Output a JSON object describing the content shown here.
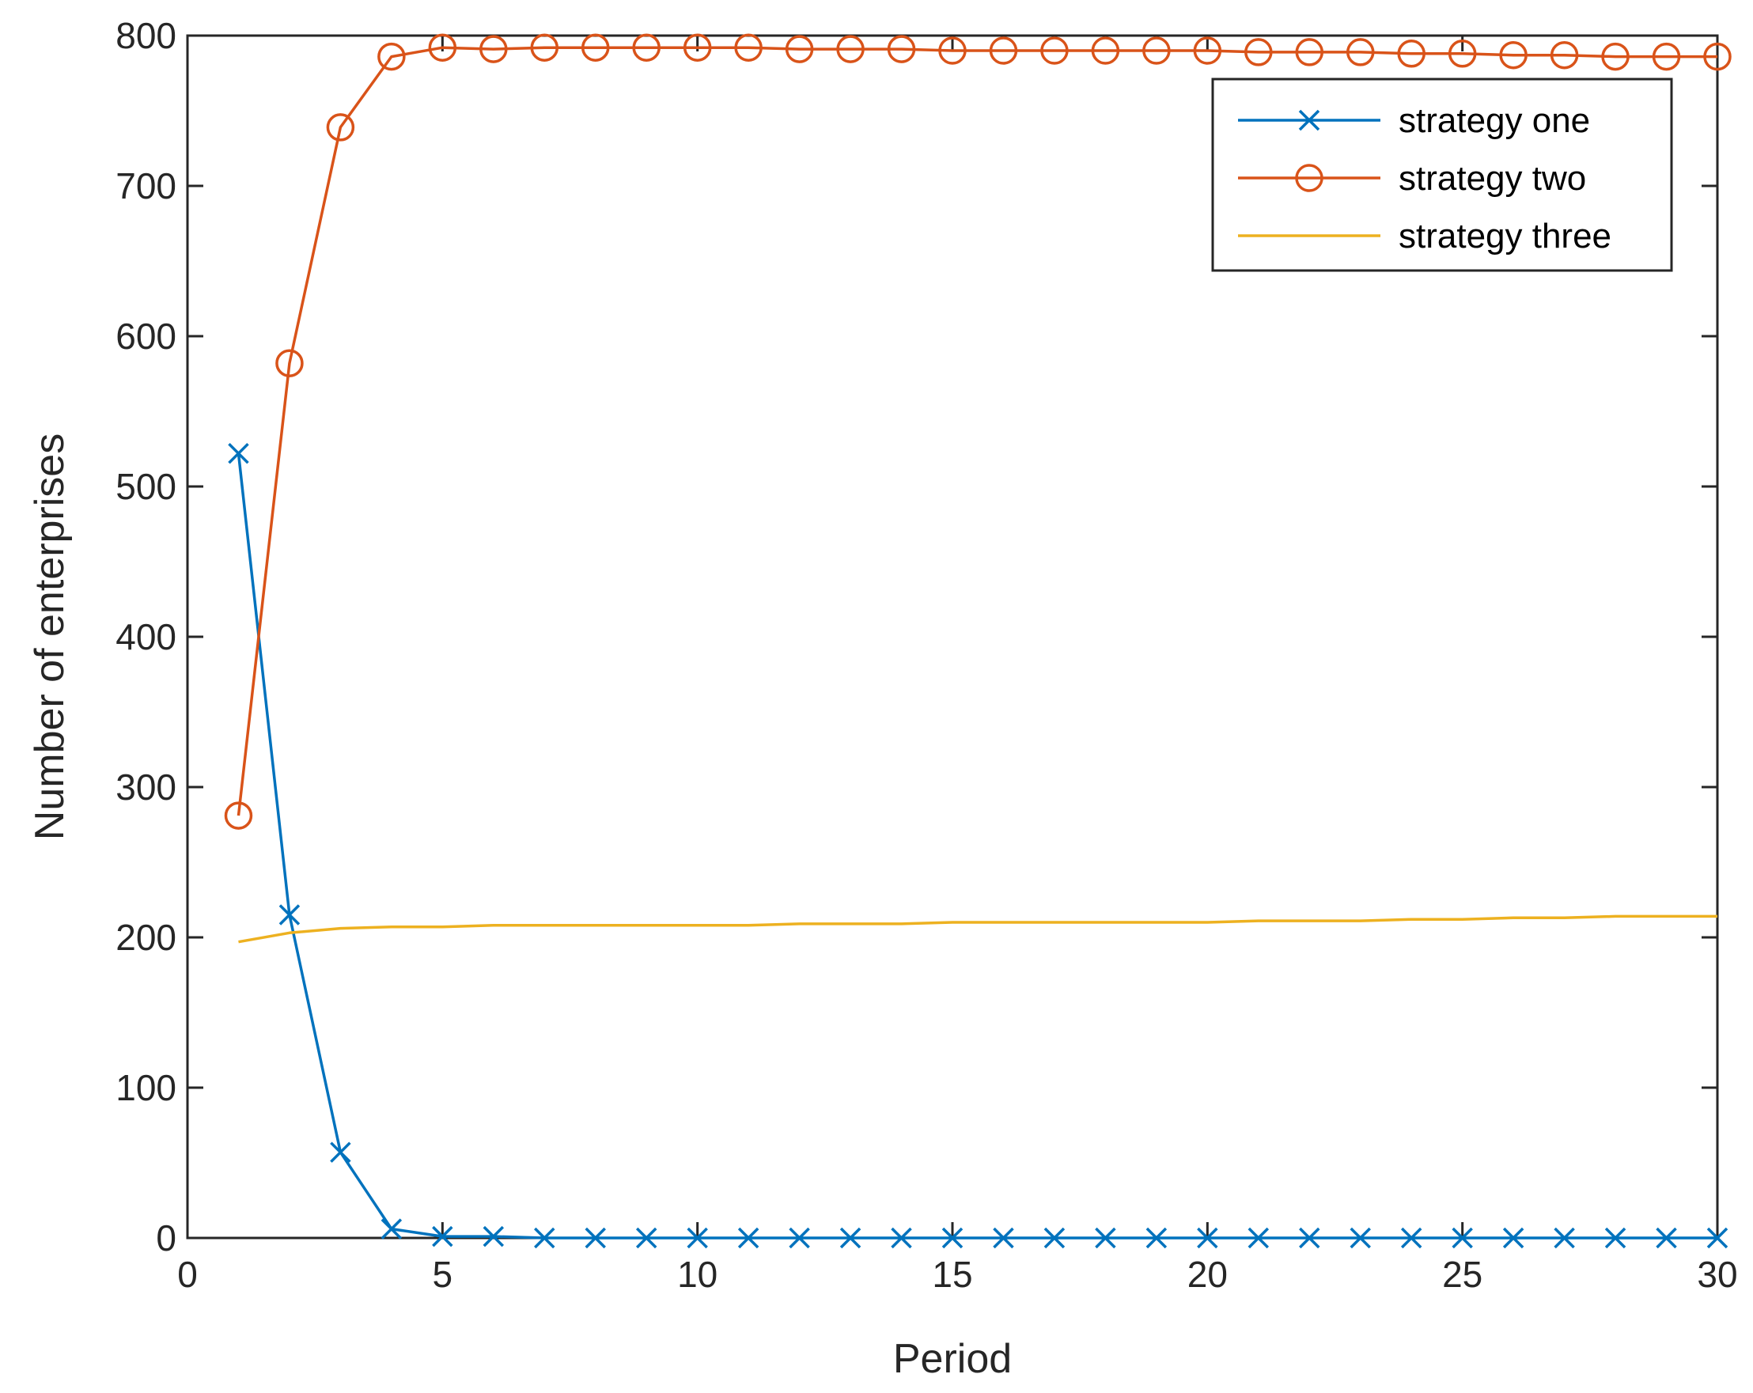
{
  "chart_data": {
    "type": "line",
    "xlabel": "Period",
    "ylabel": "Number of enterprises",
    "xlim": [
      0,
      30
    ],
    "ylim": [
      0,
      800
    ],
    "xticks": [
      0,
      5,
      10,
      15,
      20,
      25,
      30
    ],
    "yticks": [
      0,
      100,
      200,
      300,
      400,
      500,
      600,
      700,
      800
    ],
    "grid": false,
    "legend_position": "top-right",
    "x": [
      1,
      2,
      3,
      4,
      5,
      6,
      7,
      8,
      9,
      10,
      11,
      12,
      13,
      14,
      15,
      16,
      17,
      18,
      19,
      20,
      21,
      22,
      23,
      24,
      25,
      26,
      27,
      28,
      29,
      30
    ],
    "series": [
      {
        "name": "strategy one",
        "color": "#0072BD",
        "marker": "x",
        "values": [
          522,
          215,
          57,
          6,
          1,
          1,
          0,
          0,
          0,
          0,
          0,
          0,
          0,
          0,
          0,
          0,
          0,
          0,
          0,
          0,
          0,
          0,
          0,
          0,
          0,
          0,
          0,
          0,
          0,
          0
        ]
      },
      {
        "name": "strategy two",
        "color": "#D95319",
        "marker": "o",
        "values": [
          281,
          582,
          739,
          786,
          792,
          791,
          792,
          792,
          792,
          792,
          792,
          791,
          791,
          791,
          790,
          790,
          790,
          790,
          790,
          790,
          789,
          789,
          789,
          788,
          788,
          787,
          787,
          786,
          786,
          786
        ]
      },
      {
        "name": "strategy three",
        "color": "#EDB120",
        "marker": "none",
        "values": [
          197,
          203,
          206,
          207,
          207,
          208,
          208,
          208,
          208,
          208,
          208,
          209,
          209,
          209,
          210,
          210,
          210,
          210,
          210,
          210,
          211,
          211,
          211,
          212,
          212,
          213,
          213,
          214,
          214,
          214
        ]
      }
    ]
  }
}
